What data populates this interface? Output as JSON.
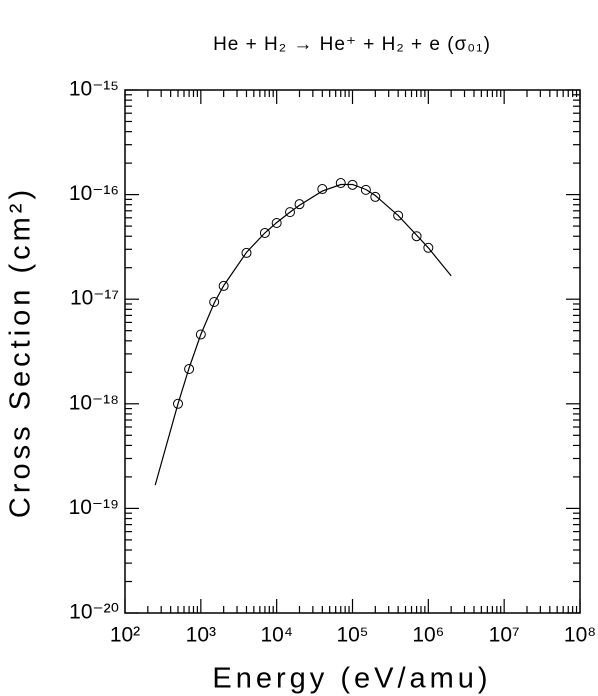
{
  "chart_data": {
    "type": "scatter",
    "title": "He + H₂ → He⁺ + H₂ + e (σ₀₁)",
    "x_label": "Energy (eV/amu)",
    "y_label": "Cross Section (cm²)",
    "x_log": true,
    "y_log": true,
    "color": "#000000",
    "xlim": [
      100,
      100000000
    ],
    "ylim": [
      1e-20,
      1e-15
    ],
    "xticks": [
      {
        "value": 100,
        "label": "10²"
      },
      {
        "value": 1000,
        "label": "10³"
      },
      {
        "value": 10000,
        "label": "10⁴"
      },
      {
        "value": 100000,
        "label": "10⁵"
      },
      {
        "value": 1000000,
        "label": "10⁶"
      },
      {
        "value": 10000000,
        "label": "10⁷"
      },
      {
        "value": 100000000,
        "label": "10⁸"
      }
    ],
    "yticks": [
      {
        "value": 1e-20,
        "label": "10⁻²⁰"
      },
      {
        "value": 1e-19,
        "label": "10⁻¹⁹"
      },
      {
        "value": 1e-18,
        "label": "10⁻¹⁸"
      },
      {
        "value": 1e-17,
        "label": "10⁻¹⁷"
      },
      {
        "value": 1e-16,
        "label": "10⁻¹⁶"
      },
      {
        "value": 1e-15,
        "label": "10⁻¹⁵"
      }
    ],
    "points": {
      "x": [
        500,
        700,
        1000,
        1500,
        2000,
        4000,
        7000,
        10000,
        15000,
        20000,
        40000,
        70000,
        100000,
        150000,
        200000,
        400000,
        700000,
        1000000
      ],
      "values": [
        1e-18,
        2.15e-18,
        4.6e-18,
        9.4e-18,
        1.34e-17,
        2.77e-17,
        4.3e-17,
        5.35e-17,
        6.8e-17,
        8.1e-17,
        1.13e-16,
        1.29e-16,
        1.24e-16,
        1.11e-16,
        9.5e-17,
        6.3e-17,
        4e-17,
        3.1e-17
      ]
    },
    "curve": {
      "x": [
        250,
        500,
        700,
        1000,
        1500,
        2000,
        4000,
        7000,
        10000,
        15000,
        20000,
        40000,
        70000,
        100000,
        150000,
        200000,
        400000,
        700000,
        1000000,
        2000000
      ],
      "values": [
        1.67e-19,
        1e-18,
        2.2e-18,
        4.6e-18,
        9.2e-18,
        1.35e-17,
        2.8e-17,
        4.3e-17,
        5.4e-17,
        6.8e-17,
        7.9e-17,
        1.08e-16,
        1.25e-16,
        1.25e-16,
        1.12e-16,
        9.8e-17,
        6.3e-17,
        4.1e-17,
        3.1e-17,
        1.67e-17
      ]
    }
  }
}
